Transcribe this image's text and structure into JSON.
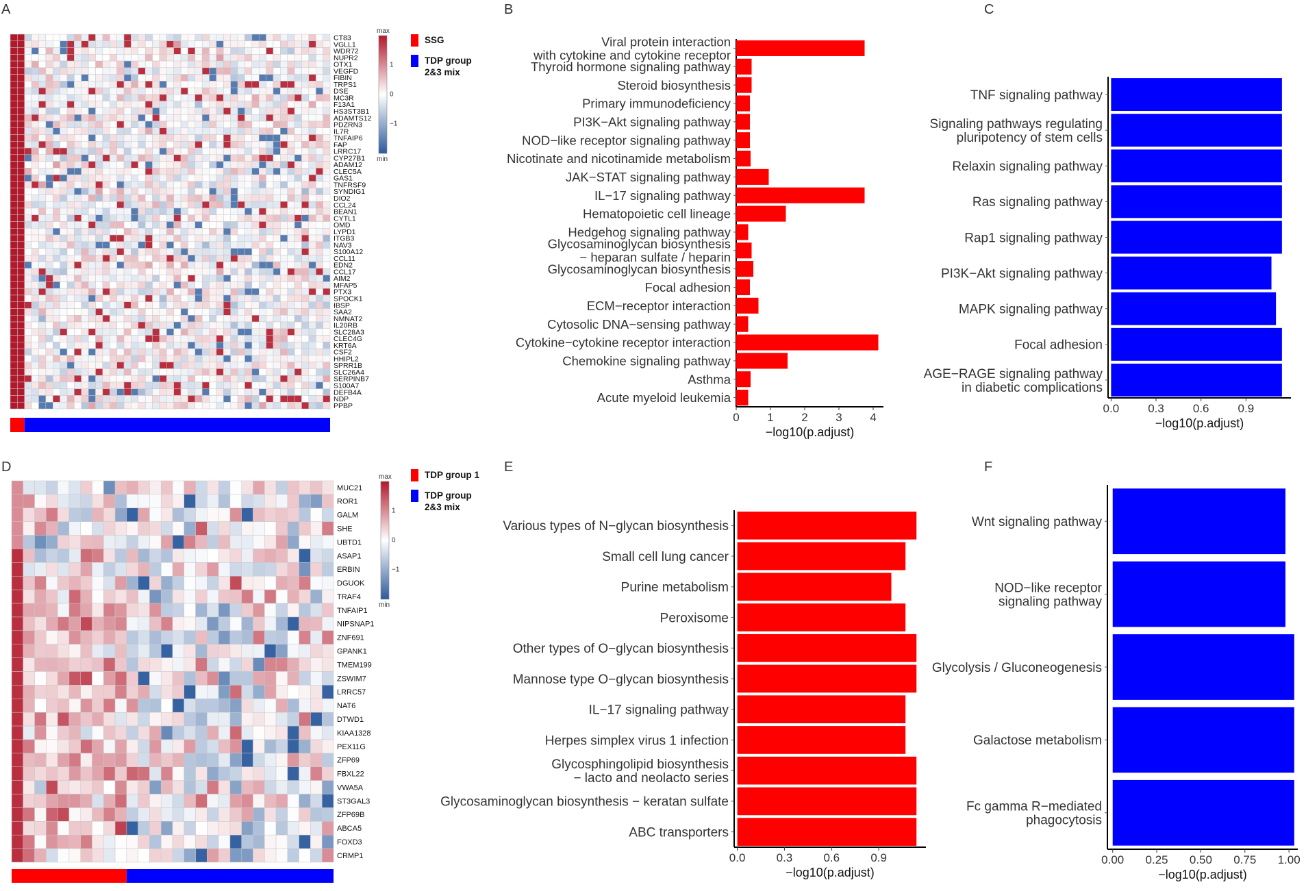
{
  "panels": {
    "A": "A",
    "B": "B",
    "C": "C",
    "D": "D",
    "E": "E",
    "F": "F"
  },
  "colors": {
    "high": "#b2182b",
    "mid": "#ffffff",
    "low": "#2c5a9c",
    "red_bar": "#ff0000",
    "blue_bar": "#0000ff",
    "group_red": "#ff0000",
    "group_blue": "#0000ff"
  },
  "chart_data": [
    {
      "panel": "A",
      "type": "heatmap",
      "genes": [
        "CT83",
        "VGLL1",
        "WDR72",
        "NUPR2",
        "OTX1",
        "VEGFD",
        "FIBIN",
        "TRPS1",
        "DSE",
        "MC3R",
        "F13A1",
        "HS3ST3B1",
        "ADAMTS12",
        "PDZRN3",
        "IL7R",
        "TNFAIP6",
        "FAP",
        "LRRC17",
        "CYP27B1",
        "ADAM12",
        "CLEC5A",
        "GAS1",
        "TNFRSF9",
        "SYNDIG1",
        "DIO2",
        "CCL24",
        "BEAN1",
        "CYTL1",
        "OMD",
        "LYPD1",
        "ITGB3",
        "NAV3",
        "S100A12",
        "CCL11",
        "EDN2",
        "CCL17",
        "AIM2",
        "MFAP5",
        "PTX3",
        "SPOCK1",
        "IBSP",
        "SAA2",
        "NMNAT2",
        "IL20RB",
        "SLC28A3",
        "CLEC4G",
        "KRT6A",
        "CSF2",
        "HHIPL2",
        "SPRR1B",
        "SLC26A4",
        "SERPINB7",
        "S100A7",
        "DEFB4A",
        "NDP",
        "PPBP"
      ],
      "n_samples": 45,
      "group_annotation": [
        {
          "name": "SSG",
          "count": 2
        },
        {
          "name": "TDP group 2&3 mix",
          "count": 43
        }
      ],
      "legend": {
        "scale_labels": [
          "max",
          "1",
          "0",
          "−1",
          "min"
        ],
        "groups": [
          "SSG",
          "TDP group 2&3 mix"
        ]
      },
      "pattern": "SSG samples high (max) for all genes; TDP group 2&3 mix mostly near 0 with scattered values"
    },
    {
      "panel": "B",
      "type": "bar",
      "orientation": "horizontal",
      "categories": [
        "Viral protein interaction\nwith cytokine and cytokine receptor",
        "Thyroid hormone signaling pathway",
        "Steroid biosynthesis",
        "Primary immunodeficiency",
        "PI3K−Akt signaling pathway",
        "NOD−like receptor signaling pathway",
        "Nicotinate and nicotinamide metabolism",
        "JAK−STAT signaling pathway",
        "IL−17 signaling pathway",
        "Hematopoietic cell lineage",
        "Hedgehog signaling pathway",
        "Glycosaminoglycan biosynthesis\n− heparan sulfate / heparin",
        "Glycosaminoglycan biosynthesis",
        "Focal adhesion",
        "ECM−receptor interaction",
        "Cytosolic DNA−sensing pathway",
        "Cytokine−cytokine receptor interaction",
        "Chemokine signaling pathway",
        "Asthma",
        "Acute myeloid leukemia"
      ],
      "values": [
        3.75,
        0.45,
        0.45,
        0.4,
        0.4,
        0.4,
        0.42,
        0.95,
        3.75,
        1.45,
        0.35,
        0.45,
        0.5,
        0.4,
        0.65,
        0.35,
        4.15,
        1.5,
        0.42,
        0.35
      ],
      "xlim": [
        0,
        4.3
      ],
      "xticks": [
        "0",
        "1",
        "2",
        "3",
        "4"
      ],
      "xlabel": "−log10(p.adjust)"
    },
    {
      "panel": "C",
      "type": "bar",
      "orientation": "horizontal",
      "categories": [
        "TNF signaling pathway",
        "Signaling pathways regulating\npluripotency of stem cells",
        "Relaxin signaling pathway",
        "Ras signaling pathway",
        "Rap1 signaling pathway",
        "PI3K−Akt signaling pathway",
        "MAPK signaling pathway",
        "Focal adhesion",
        "AGE−RAGE signaling pathway\nin diabetic complications"
      ],
      "values": [
        1.14,
        1.14,
        1.14,
        1.14,
        1.14,
        1.07,
        1.1,
        1.14,
        1.14
      ],
      "xlim": [
        -0.02,
        1.2
      ],
      "xticks": [
        "0.0",
        "0.3",
        "0.6",
        "0.9"
      ],
      "xlabel": "−log10(p.adjust)"
    },
    {
      "panel": "D",
      "type": "heatmap",
      "genes": [
        "MUC21",
        "ROR1",
        "GALM",
        "SHE",
        "UBTD1",
        "ASAP1",
        "ERBIN",
        "DGUOK",
        "TRAF4",
        "TNFAIP1",
        "NIPSNAP1",
        "ZNF691",
        "GPANK1",
        "TMEM199",
        "ZSWIM7",
        "LRRC57",
        "NAT6",
        "DTWD1",
        "KIAA1328",
        "PEX11G",
        "ZFP69",
        "FBXL22",
        "VWA5A",
        "ST3GAL3",
        "ZFP69B",
        "ABCA5",
        "FOXD3",
        "CRMP1"
      ],
      "n_samples": 28,
      "group_annotation": [
        {
          "name": "TDP group 1",
          "count": 10
        },
        {
          "name": "TDP group 2&3 mix",
          "count": 18
        }
      ],
      "legend": {
        "scale_labels": [
          "max",
          "1",
          "0",
          "−1",
          "min"
        ],
        "groups": [
          "TDP group 1",
          "TDP group 2&3 mix"
        ]
      },
      "pattern": "TDP group 1 samples mostly high (red) for lower genes; TDP group 2&3 mix mixed with more blue"
    },
    {
      "panel": "E",
      "type": "bar",
      "orientation": "horizontal",
      "categories": [
        "Various types of N−glycan biosynthesis",
        "Small cell lung cancer",
        "Purine metabolism",
        "Peroxisome",
        "Other types of O−glycan biosynthesis",
        "Mannose type O−glycan biosynthesis",
        "IL−17 signaling pathway",
        "Herpes simplex virus 1 infection",
        "Glycosphingolipid biosynthesis\n− lacto and neolacto series",
        "Glycosaminoglycan biosynthesis − keratan sulfate",
        "ABC transporters"
      ],
      "values": [
        1.14,
        1.07,
        0.98,
        1.07,
        1.14,
        1.14,
        1.07,
        1.07,
        1.14,
        1.14,
        1.14
      ],
      "xlim": [
        -0.02,
        1.2
      ],
      "xticks": [
        "0.0",
        "0.3",
        "0.6",
        "0.9"
      ],
      "xlabel": "−log10(p.adjust)"
    },
    {
      "panel": "F",
      "type": "bar",
      "orientation": "horizontal",
      "categories": [
        "Wnt signaling pathway",
        "NOD−like receptor\nsignaling pathway",
        "Glycolysis / Gluconeogenesis",
        "Galactose metabolism",
        "Fc gamma R−mediated\nphagocytosis"
      ],
      "values": [
        0.98,
        0.98,
        1.03,
        1.03,
        1.03
      ],
      "xlim": [
        -0.03,
        1.05
      ],
      "xticks": [
        "0.00",
        "0.25",
        "0.50",
        "0.75",
        "1.00"
      ],
      "xlabel": "−log10(p.adjust)"
    }
  ]
}
